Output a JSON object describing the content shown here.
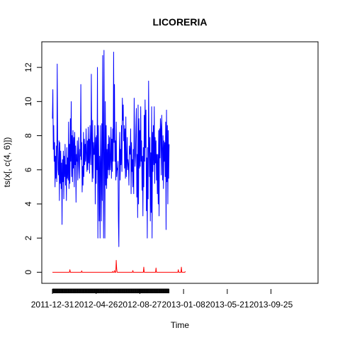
{
  "chart_data": {
    "type": "line",
    "title": "LICORERIA",
    "xlabel": "Time",
    "ylabel": "ts(x[, c(4, 6)])",
    "ylim": [
      -0.65,
      13.5
    ],
    "xlim": [
      0,
      700
    ],
    "y_ticks": [
      0,
      2,
      4,
      6,
      8,
      10,
      12
    ],
    "x_ticks": [
      {
        "x": 0,
        "label": "2011-12-31"
      },
      {
        "x": 120,
        "label": "2012-04-26"
      },
      {
        "x": 240,
        "label": "2012-08-27"
      },
      {
        "x": 360,
        "label": "2013-01-08"
      },
      {
        "x": 480,
        "label": "2013-05-21"
      },
      {
        "x": 600,
        "label": "2013-09-25"
      }
    ],
    "grid": false,
    "series": [
      {
        "color": "#0000ff",
        "x_start": 0,
        "x_step": 1.2,
        "values": [
          9.0,
          10.7,
          7.2,
          8.6,
          6.5,
          7.6,
          5.0,
          6.8,
          5.5,
          7.4,
          5.3,
          12.2,
          7.6,
          6.0,
          5.7,
          7.7,
          4.2,
          7.6,
          5.2,
          7.1,
          4.9,
          6.4,
          2.8,
          6.6,
          5.3,
          7.1,
          4.3,
          6.8,
          5.6,
          7.5,
          5.1,
          6.3,
          4.2,
          7.3,
          5.5,
          6.7,
          5.4,
          8.8,
          4.9,
          7.5,
          5.2,
          9.0,
          6.5,
          10.0,
          5.6,
          8.0,
          5.3,
          8.3,
          6.1,
          7.9,
          5.0,
          8.2,
          6.3,
          7.4,
          4.1,
          6.9,
          6.5,
          7.7,
          5.4,
          6.3,
          7.9,
          6.7,
          5.5,
          7.2,
          6.8,
          11.0,
          6.6,
          7.6,
          4.7,
          6.2,
          5.1,
          8.2,
          5.6,
          7.8,
          6.3,
          7.5,
          6.5,
          8.4,
          6.9,
          5.9,
          7.7,
          6.0,
          8.5,
          6.4,
          7.8,
          5.8,
          8.6,
          7.0,
          6.3,
          11.6,
          7.7,
          5.3,
          8.9,
          5.5,
          7.6,
          6.9,
          6.9,
          8.6,
          4.0,
          7.9,
          5.2,
          8.0,
          6.0,
          12.0,
          2.0,
          8.6,
          6.8,
          3.0,
          6.8,
          2.0,
          8.6,
          6.3,
          3.0,
          8.7,
          4.2,
          12.7,
          7.0,
          2.0,
          13.0,
          6.9,
          2.0,
          10.0,
          5.1,
          8.6,
          4.9,
          7.2,
          5.5,
          7.5,
          6.0,
          8.0,
          5.7,
          7.9,
          6.0,
          6.6,
          8.5,
          5.5,
          7.8,
          5.9,
          8.4,
          6.5,
          12.9,
          7.6,
          11.0,
          6.5,
          7.7,
          5.4,
          8.8,
          5.6,
          6.1,
          6.0,
          6.5,
          3.0,
          1.5,
          7.0,
          8.2,
          5.4,
          7.2,
          6.3,
          8.6,
          5.9,
          10.2,
          8.9,
          9.8,
          7.7,
          8.6,
          6.1,
          8.4,
          5.5,
          9.1,
          5.6,
          6.4,
          7.9,
          6.0,
          6.6,
          6.3,
          5.1,
          7.4,
          7.0,
          6.9,
          8.4,
          4.6,
          7.6,
          5.9,
          6.6,
          5.0,
          7.2,
          4.6,
          10.2,
          7.4,
          6.2,
          6.8,
          8.5,
          9.6,
          4.4,
          6.9,
          3.2,
          9.8,
          4.0,
          9.0,
          6.1,
          8.3,
          6.2,
          9.7,
          6.5,
          7.7,
          4.8,
          6.8,
          3.3,
          7.3,
          5.0,
          9.2,
          6.5,
          10.1,
          7.3,
          9.5,
          3.6,
          6.7,
          2.0,
          7.3,
          4.3,
          11.2,
          7.7,
          5.6,
          7.9,
          3.0,
          7.0,
          3.5,
          9.7,
          2.0,
          8.2,
          5.9,
          8.6,
          6.3,
          9.7,
          5.2,
          7.9,
          6.4,
          7.7,
          5.4,
          6.9,
          4.6,
          6.9,
          4.0,
          8.3,
          3.3,
          8.4,
          6.7,
          9.0,
          8.5,
          5.7,
          9.2,
          7.4,
          5.4,
          8.0,
          4.9,
          7.7,
          6.5,
          7.6,
          5.6,
          8.8,
          2.5,
          9.5,
          5.3,
          8.6,
          4.0,
          8.3,
          5.5,
          7.5
        ]
      },
      {
        "color": "#ff0000",
        "x_start": 0,
        "x_step": 1.2,
        "values": [
          0,
          0,
          0,
          0,
          0,
          0,
          0,
          0,
          0,
          0,
          0,
          0,
          0,
          0,
          0,
          0,
          0,
          0,
          0,
          0,
          0,
          0,
          0,
          0,
          0,
          0,
          0,
          0,
          0,
          0,
          0,
          0,
          0,
          0,
          0,
          0,
          0,
          0,
          0,
          0,
          0.15,
          0,
          0,
          0,
          0,
          0,
          0,
          0,
          0,
          0,
          0,
          0,
          0,
          0,
          0,
          0,
          0,
          0,
          0,
          0,
          0,
          0,
          0,
          0,
          0,
          0,
          0,
          0.08,
          0,
          0,
          0,
          0,
          0,
          0,
          0,
          0,
          0,
          0,
          0,
          0,
          0,
          0,
          0,
          0,
          0,
          0,
          0,
          0,
          0,
          0,
          0,
          0,
          0,
          0,
          0,
          0,
          0,
          0,
          0,
          0,
          0,
          0,
          0,
          0,
          0,
          0,
          0,
          0,
          0,
          0,
          0,
          0,
          0,
          0,
          0,
          0,
          0,
          0,
          0,
          0,
          0,
          0,
          0,
          0,
          0,
          0,
          0,
          0,
          0,
          0,
          0,
          0,
          0,
          0,
          0,
          0,
          0,
          0,
          0.05,
          0,
          0,
          0,
          0.1,
          0,
          0,
          0,
          0.7,
          0.2,
          0,
          0,
          0,
          0,
          0,
          0,
          0,
          0,
          0,
          0,
          0,
          0,
          0,
          0,
          0,
          0,
          0,
          0,
          0,
          0,
          0,
          0,
          0,
          0,
          0,
          0,
          0,
          0,
          0,
          0,
          0,
          0,
          0,
          0,
          0,
          0,
          0.1,
          0,
          0,
          0,
          0,
          0,
          0,
          0,
          0,
          0,
          0,
          0,
          0,
          0,
          0,
          0,
          0,
          0,
          0,
          0,
          0,
          0,
          0,
          0,
          0,
          0.3,
          0,
          0,
          0,
          0,
          0,
          0,
          0,
          0,
          0,
          0,
          0,
          0,
          0,
          0,
          0,
          0,
          0,
          0,
          0,
          0,
          0,
          0,
          0,
          0,
          0,
          0,
          0,
          0.25,
          0,
          0,
          0,
          0,
          0,
          0,
          0,
          0,
          0,
          0,
          0,
          0,
          0,
          0,
          0,
          0,
          0,
          0,
          0,
          0,
          0,
          0,
          0,
          0,
          0,
          0,
          0,
          0,
          0,
          0,
          0,
          0,
          0,
          0,
          0,
          0,
          0,
          0,
          0,
          0,
          0,
          0,
          0,
          0,
          0,
          0,
          0,
          0,
          0,
          0,
          0.15,
          0,
          0,
          0,
          0,
          0,
          0,
          0.3,
          0,
          0,
          0,
          0,
          0,
          0,
          0,
          0,
          0.05
        ]
      }
    ]
  }
}
